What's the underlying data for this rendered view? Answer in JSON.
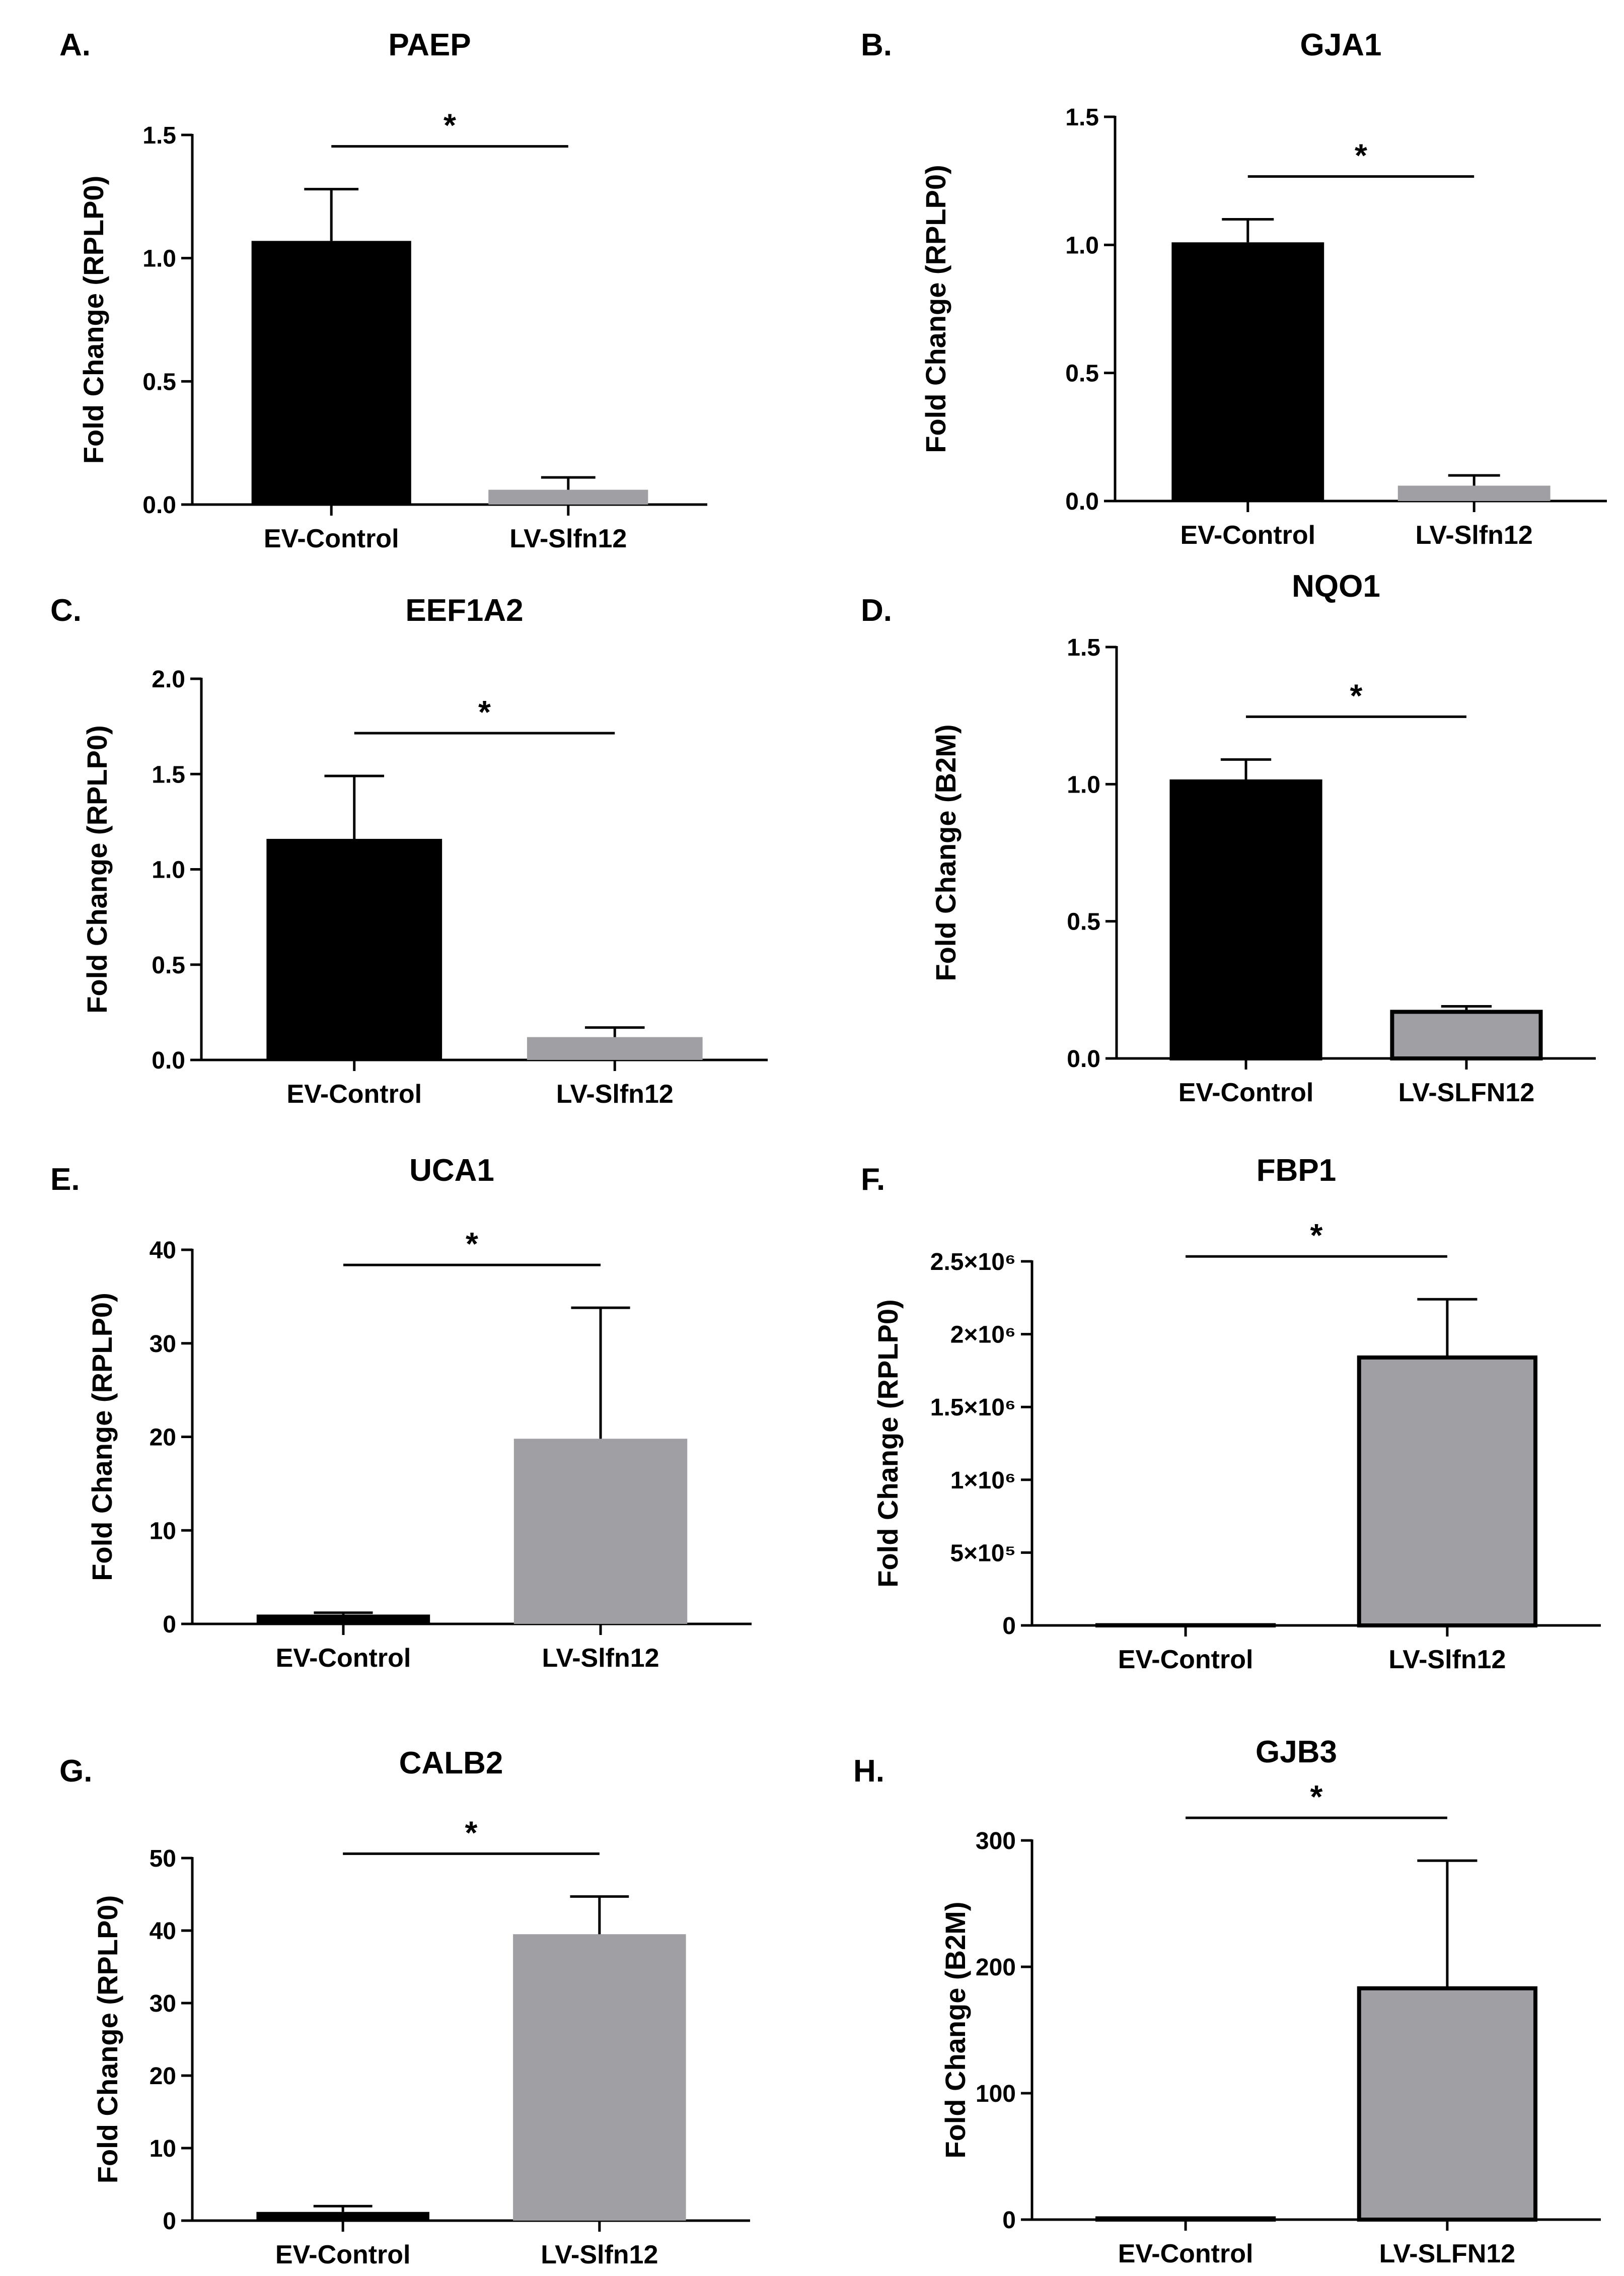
{
  "figure": {
    "background": "#ffffff",
    "bar_colors": [
      "#000000",
      "#a0a0a4"
    ]
  },
  "chart_data": [
    {
      "panel": "A.",
      "type": "bar",
      "title": "PAEP",
      "ylabel": "Fold  Change (RPLP0)",
      "categories": [
        "EV-Control",
        "LV-Slfn12"
      ],
      "values": [
        1.07,
        0.06
      ],
      "errors": [
        0.21,
        0.05
      ],
      "ylim": [
        0,
        1.5
      ],
      "yticks": [
        0,
        0.5,
        1.0,
        1.5
      ],
      "ytick_labels": [
        "0.0",
        "0.5",
        "1.0",
        "1.5"
      ],
      "significance": "*",
      "outlined_bars": false
    },
    {
      "panel": "B.",
      "type": "bar",
      "title": "GJA1",
      "ylabel": "Fold  Change (RPLP0)",
      "categories": [
        "EV-Control",
        "LV-Slfn12"
      ],
      "values": [
        1.01,
        0.06
      ],
      "errors": [
        0.09,
        0.04
      ],
      "ylim": [
        0,
        1.5
      ],
      "yticks": [
        0,
        0.5,
        1.0,
        1.5
      ],
      "ytick_labels": [
        "0.0",
        "0.5",
        "1.0",
        "1.5"
      ],
      "significance": "*",
      "outlined_bars": false
    },
    {
      "panel": "C.",
      "type": "bar",
      "title": "EEF1A2",
      "ylabel": "Fold  Change (RPLP0)",
      "categories": [
        "EV-Control",
        "LV-Slfn12"
      ],
      "values": [
        1.16,
        0.12
      ],
      "errors": [
        0.33,
        0.05
      ],
      "ylim": [
        0,
        2.0
      ],
      "yticks": [
        0,
        0.5,
        1.0,
        1.5,
        2.0
      ],
      "ytick_labels": [
        "0.0",
        "0.5",
        "1.0",
        "1.5",
        "2.0"
      ],
      "significance": "*",
      "outlined_bars": false
    },
    {
      "panel": "D.",
      "type": "bar",
      "title": "NQO1",
      "ylabel": "Fold  Change (B2M)",
      "categories": [
        "EV-Control",
        "LV-SLFN12"
      ],
      "values": [
        1.01,
        0.17
      ],
      "errors": [
        0.08,
        0.02
      ],
      "ylim": [
        0,
        1.5
      ],
      "yticks": [
        0,
        0.5,
        1.0,
        1.5
      ],
      "ytick_labels": [
        "0.0",
        "0.5",
        "1.0",
        "1.5"
      ],
      "significance": "*",
      "outlined_bars": true
    },
    {
      "panel": "E.",
      "type": "bar",
      "title": "UCA1",
      "ylabel": "Fold  Change (RPLP0)",
      "categories": [
        "EV-Control",
        "LV-Slfn12"
      ],
      "values": [
        1.0,
        19.8
      ],
      "errors": [
        0.2,
        14.0
      ],
      "ylim": [
        0,
        40
      ],
      "yticks": [
        0,
        10,
        20,
        30,
        40
      ],
      "ytick_labels": [
        "0",
        "10",
        "20",
        "30",
        "40"
      ],
      "significance": "*",
      "outlined_bars": false
    },
    {
      "panel": "F.",
      "type": "bar",
      "title": "FBP1",
      "ylabel": "Fold  Change (RPLP0)",
      "categories": [
        "EV-Control",
        "LV-Slfn12"
      ],
      "values": [
        1,
        1840000
      ],
      "errors": [
        0,
        400000
      ],
      "ylim": [
        0,
        2500000
      ],
      "yticks": [
        0,
        500000,
        1000000,
        1500000,
        2000000,
        2500000
      ],
      "ytick_labels": [
        "0",
        "5×10⁵",
        "1×10⁶",
        "1.5×10⁶",
        "2×10⁶",
        "2.5×10⁶"
      ],
      "significance": "*",
      "outlined_bars": true
    },
    {
      "panel": "G.",
      "type": "bar",
      "title": "CALB2",
      "ylabel": "Fold  Change (RPLP0)",
      "categories": [
        "EV-Control",
        "LV-Slfn12"
      ],
      "values": [
        1.2,
        39.5
      ],
      "errors": [
        0.8,
        5.2
      ],
      "ylim": [
        0,
        50
      ],
      "yticks": [
        0,
        10,
        20,
        30,
        40,
        50
      ],
      "ytick_labels": [
        "0",
        "10",
        "20",
        "30",
        "40",
        "50"
      ],
      "significance": "*",
      "outlined_bars": false
    },
    {
      "panel": "H.",
      "type": "bar",
      "title": "GJB3",
      "ylabel": "Fold  Change (B2M)",
      "categories": [
        "EV-Control",
        "LV-SLFN12"
      ],
      "values": [
        1,
        183
      ],
      "errors": [
        0,
        101
      ],
      "ylim": [
        0,
        300
      ],
      "yticks": [
        0,
        100,
        200,
        300
      ],
      "ytick_labels": [
        "0",
        "100",
        "200",
        "300"
      ],
      "significance": "*",
      "outlined_bars": true
    }
  ]
}
